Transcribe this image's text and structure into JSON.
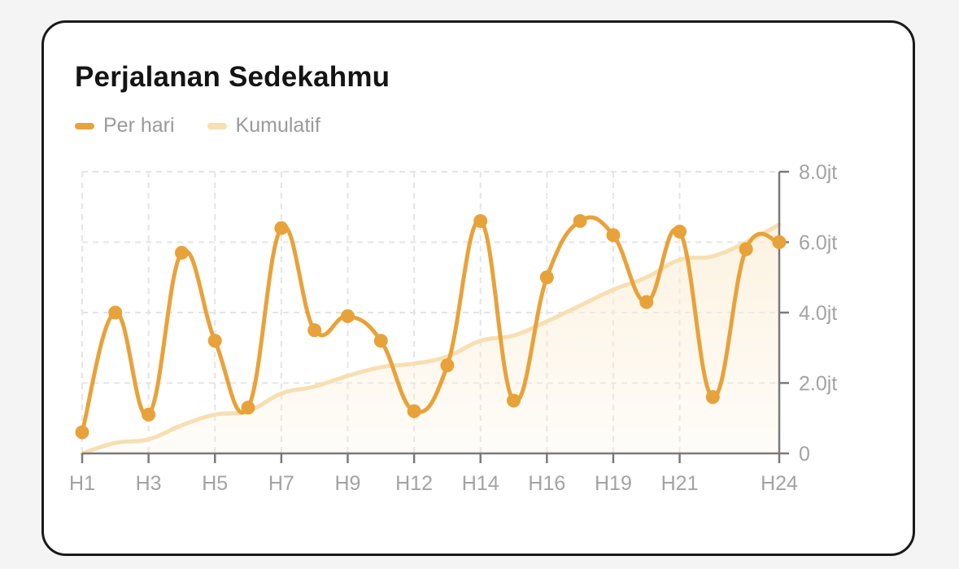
{
  "colors": {
    "per_hari": "#e8a23a",
    "kumulatif": "#f7dfb2",
    "area": "#fbeed6",
    "axis": "#7a7a7a",
    "grid": "#e4e4e4"
  },
  "card": {
    "title": "Perjalanan Sedekahmu"
  },
  "legend": [
    {
      "label": "Per hari",
      "color": "#e8a23a"
    },
    {
      "label": "Kumulatif",
      "color": "#f7dfb2"
    }
  ],
  "chart_data": {
    "type": "line",
    "title": "Perjalanan Sedekahmu",
    "xlabel": "",
    "ylabel": "",
    "ylim": [
      0,
      8.0
    ],
    "y_unit": "jt",
    "grid": true,
    "legend_position": "top-left",
    "y_ticks": [
      {
        "value": 0,
        "label": "0"
      },
      {
        "value": 2.0,
        "label": "2.0jt"
      },
      {
        "value": 4.0,
        "label": "4.0jt"
      },
      {
        "value": 6.0,
        "label": "6.0jt"
      },
      {
        "value": 8.0,
        "label": "8.0jt"
      }
    ],
    "x_ticks": [
      {
        "value": 1,
        "label": "H1"
      },
      {
        "value": 3,
        "label": "H3"
      },
      {
        "value": 5,
        "label": "H5"
      },
      {
        "value": 7,
        "label": "H7"
      },
      {
        "value": 9,
        "label": "H9"
      },
      {
        "value": 11,
        "label": "H12"
      },
      {
        "value": 13,
        "label": "H14"
      },
      {
        "value": 15,
        "label": "H16"
      },
      {
        "value": 17,
        "label": "H19"
      },
      {
        "value": 19,
        "label": "H21"
      },
      {
        "value": 22,
        "label": "H24"
      }
    ],
    "x_range": [
      1,
      22
    ],
    "series": [
      {
        "name": "Per hari",
        "x": [
          1,
          2,
          3,
          4,
          5,
          6,
          7,
          8,
          9,
          10,
          11,
          12,
          13,
          14,
          15,
          16,
          17,
          18,
          19,
          20,
          21,
          22
        ],
        "values": [
          0.6,
          4.0,
          1.1,
          5.7,
          3.2,
          1.3,
          6.4,
          3.5,
          3.9,
          3.2,
          1.2,
          2.5,
          6.6,
          1.5,
          5.0,
          6.6,
          6.2,
          4.3,
          6.3,
          1.6,
          5.8,
          6.0
        ]
      },
      {
        "name": "Kumulatif",
        "x": [
          1,
          2,
          3,
          4,
          5,
          6,
          7,
          8,
          9,
          10,
          11,
          12,
          13,
          14,
          15,
          16,
          17,
          18,
          19,
          20,
          21,
          22
        ],
        "values": [
          0.0,
          0.3,
          0.4,
          0.8,
          1.1,
          1.2,
          1.7,
          1.9,
          2.2,
          2.45,
          2.55,
          2.75,
          3.2,
          3.35,
          3.75,
          4.2,
          4.65,
          5.0,
          5.5,
          5.6,
          6.0,
          6.5
        ]
      }
    ]
  }
}
